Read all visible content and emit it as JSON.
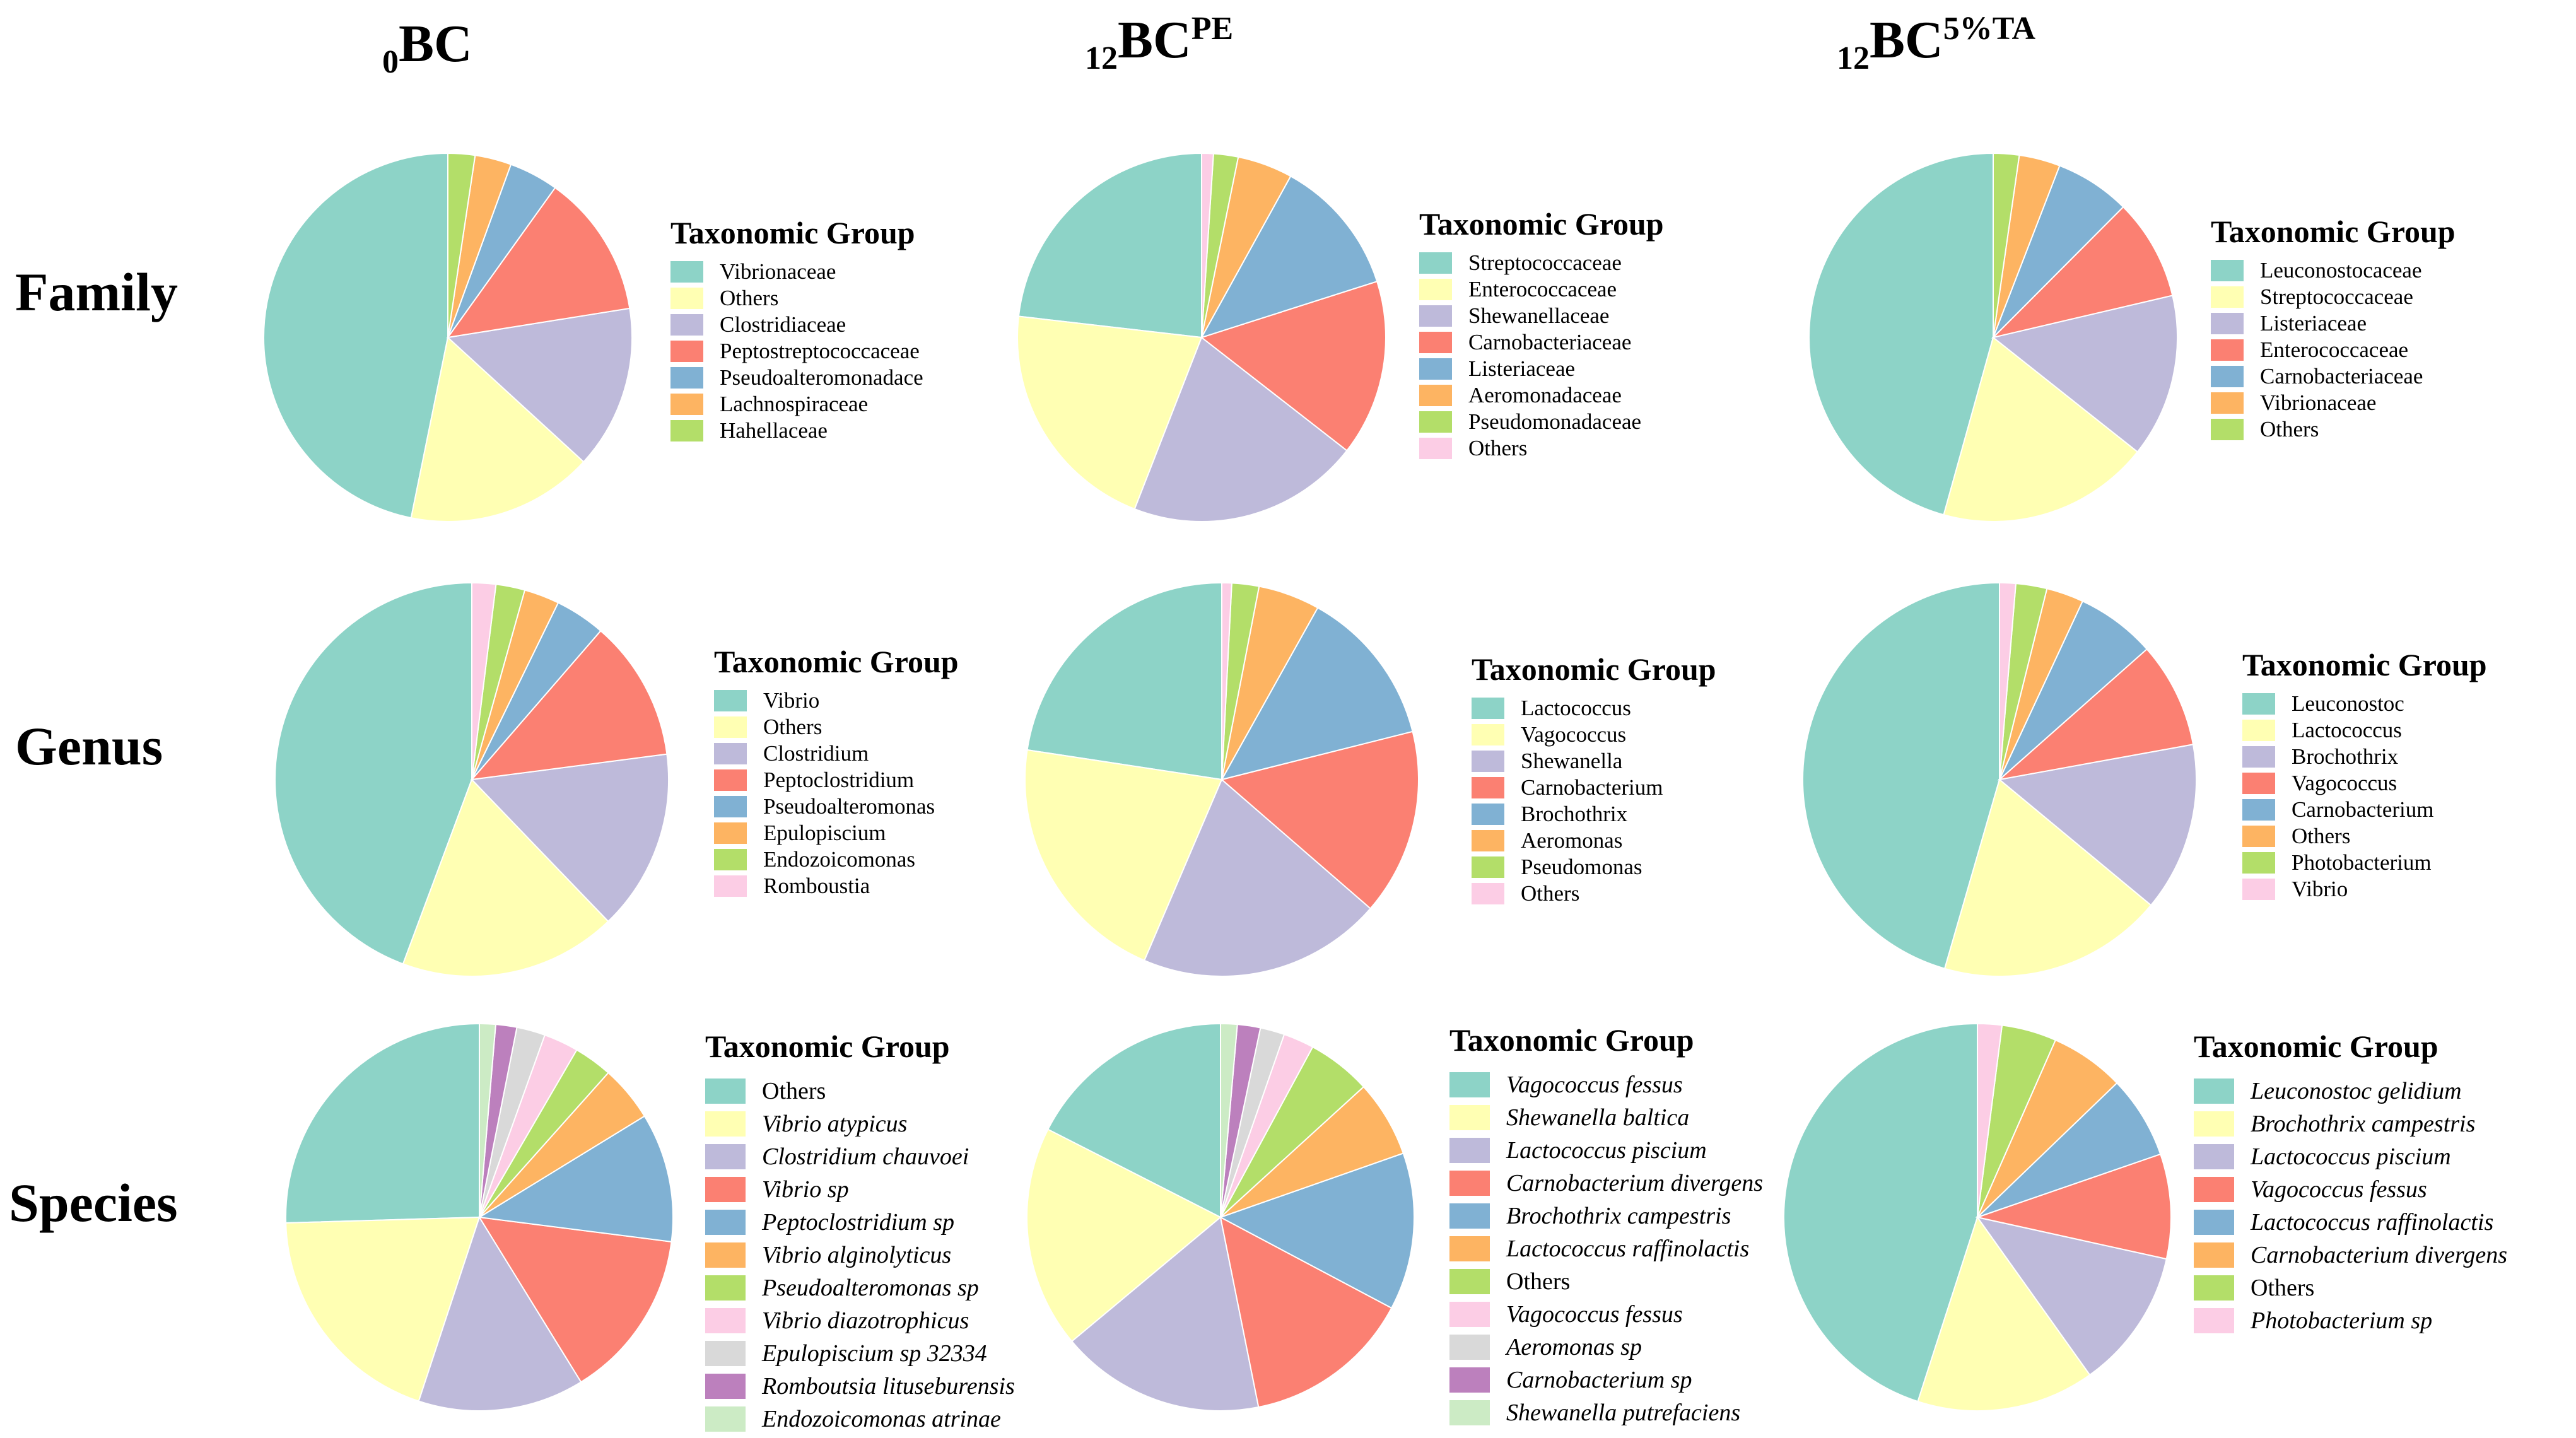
{
  "columns": [
    {
      "prefix": "0",
      "main": "BC",
      "sup": ""
    },
    {
      "prefix": "12",
      "main": "BC",
      "sup": "PE"
    },
    {
      "prefix": "12",
      "main": "BC",
      "sup": "5%TA"
    }
  ],
  "rows": [
    "Family",
    "Genus",
    "Species"
  ],
  "legend_title": "Taxonomic Group",
  "palette": {
    "teal": "#8dd3c7",
    "yellow": "#ffffb3",
    "lavender": "#bebada",
    "salmon": "#fb8072",
    "blue": "#80b1d3",
    "orange": "#fdb462",
    "green": "#b3de69",
    "pink": "#fccde5",
    "gray": "#d9d9d9",
    "purple": "#bc80bd",
    "mint": "#ccebc5"
  },
  "chart_data": [
    {
      "type": "pie",
      "title": "0BC Family",
      "labels": [
        "Vibrionaceae",
        "Others",
        "Clostridiaceae",
        "Peptostreptococcaceae",
        "Pseudoalteromonadace",
        "Lachnospiraceae",
        "Hahellaceae"
      ],
      "values": [
        45.4,
        15.9,
        13.9,
        12.2,
        4.2,
        3.1,
        2.3
      ],
      "colors": [
        "teal",
        "yellow",
        "lavender",
        "salmon",
        "blue",
        "orange",
        "green"
      ]
    },
    {
      "type": "pie",
      "title": "12BCPE Family",
      "labels": [
        "Streptococcaceae",
        "Enterococcaceae",
        "Shewanellaceae",
        "Carnobacteriaceae",
        "Listeriaceae",
        "Aeromonadaceae",
        "Pseudomonadaceae",
        "Others"
      ],
      "values": [
        22.5,
        20.3,
        19.8,
        15.0,
        11.7,
        4.7,
        2.1,
        1.0
      ],
      "colors": [
        "teal",
        "yellow",
        "lavender",
        "salmon",
        "blue",
        "orange",
        "green",
        "pink"
      ]
    },
    {
      "type": "pie",
      "title": "12BC5%TA Family",
      "labels": [
        "Leuconostocaceae",
        "Streptococcaceae",
        "Listeriaceae",
        "Enterococcaceae",
        "Carnobacteriaceae",
        "Vibrionaceae",
        "Others"
      ],
      "values": [
        44.3,
        18.1,
        13.9,
        8.6,
        6.4,
        3.5,
        2.2
      ],
      "colors": [
        "teal",
        "yellow",
        "lavender",
        "salmon",
        "blue",
        "orange",
        "green"
      ]
    },
    {
      "type": "pie",
      "title": "0BC Genus",
      "labels": [
        "Vibrio",
        "Others",
        "Clostridium",
        "Peptoclostridium",
        "Pseudoalteromonas",
        "Epulopiscium",
        "Endozoicomonas",
        "Romboustia"
      ],
      "values": [
        42.9,
        17.3,
        14.4,
        11.2,
        4.0,
        2.8,
        2.3,
        1.9
      ],
      "colors": [
        "teal",
        "yellow",
        "lavender",
        "salmon",
        "blue",
        "orange",
        "green",
        "pink"
      ]
    },
    {
      "type": "pie",
      "title": "12BCPE Genus",
      "labels": [
        "Lactococcus",
        "Vagococcus",
        "Shewanella",
        "Carnobacterium",
        "Brochothrix",
        "Aeromonas",
        "Pseudomonas",
        "Others"
      ],
      "values": [
        22.3,
        20.7,
        19.8,
        15.1,
        12.8,
        5.0,
        2.2,
        0.8
      ],
      "colors": [
        "teal",
        "yellow",
        "lavender",
        "salmon",
        "blue",
        "orange",
        "green",
        "pink"
      ]
    },
    {
      "type": "pie",
      "title": "12BC5%TA Genus",
      "labels": [
        "Leuconostoc",
        "Lactococcus",
        "Brochothrix",
        "Vagococcus",
        "Carnobacterium",
        "Others",
        "Photobacterium",
        "Vibrio"
      ],
      "values": [
        44.6,
        18.1,
        13.6,
        8.5,
        6.4,
        3.0,
        2.5,
        1.3
      ],
      "colors": [
        "teal",
        "yellow",
        "lavender",
        "salmon",
        "blue",
        "orange",
        "green",
        "pink"
      ]
    },
    {
      "type": "pie",
      "title": "0BC Species",
      "labels": [
        "Others",
        "Vibrio atypicus",
        "Clostridium chauvoei",
        "Vibrio sp",
        "Peptoclostridium sp",
        "Vibrio alginolyticus",
        "Pseudoalteromonas sp",
        "Vibrio diazotrophicus",
        "Epulopiscium sp 32334",
        "Romboutsia lituseburensis",
        "Endozoicomonas atrinae"
      ],
      "values": [
        24.6,
        18.8,
        13.4,
        13.7,
        10.4,
        4.5,
        3.1,
        2.8,
        2.3,
        1.7,
        1.3
      ],
      "colors": [
        "teal",
        "yellow",
        "lavender",
        "salmon",
        "blue",
        "orange",
        "green",
        "pink",
        "gray",
        "purple",
        "mint"
      ]
    },
    {
      "type": "pie",
      "title": "12BCPE Species",
      "labels": [
        "Vagococcus fessus",
        "Shewanella baltica",
        "Lactococcus piscium",
        "Carnobacterium divergens",
        "Brochothrix campestris",
        "Lactococcus raffinolactis",
        "Others",
        "Vagococcus fessus",
        "Aeromonas sp",
        "Carnobacterium sp",
        "Shewanella putrefaciens"
      ],
      "values": [
        16.4,
        17.4,
        16.0,
        13.2,
        12.3,
        6.0,
        5.0,
        2.4,
        1.9,
        1.8,
        1.3
      ],
      "colors": [
        "teal",
        "yellow",
        "lavender",
        "salmon",
        "blue",
        "orange",
        "green",
        "pink",
        "gray",
        "purple",
        "mint"
      ]
    },
    {
      "type": "pie",
      "title": "12BC5%TA Species",
      "labels": [
        "Leuconostoc gelidium",
        "Brochothrix campestris",
        "Lactococcus piscium",
        "Vagococcus fessus",
        "Lactococcus raffinolactis",
        "Carnobacterium divergens",
        "Others",
        "Photobacterium sp"
      ],
      "values": [
        44.3,
        14.6,
        11.5,
        8.6,
        6.8,
        6.1,
        4.5,
        2.0
      ],
      "colors": [
        "teal",
        "yellow",
        "lavender",
        "salmon",
        "blue",
        "orange",
        "green",
        "pink"
      ]
    }
  ]
}
